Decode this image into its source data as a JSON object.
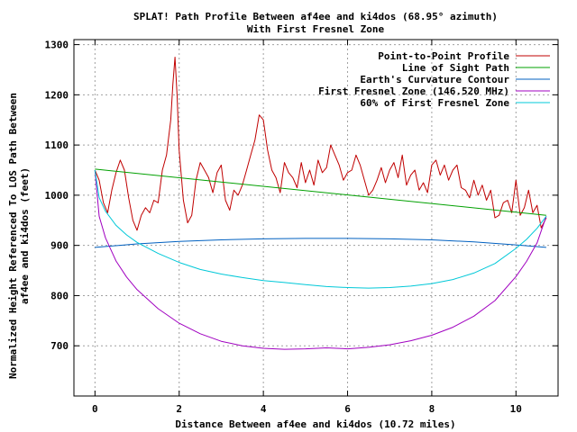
{
  "chart_data": {
    "type": "line",
    "title": "SPLAT! Path Profile Between af4ee and ki4dos (68.95° azimuth)",
    "subtitle": "With First Fresnel Zone",
    "xlabel": "Distance Between af4ee and ki4dos (10.72 miles)",
    "ylabel_line1": "Normalized Height Referenced To LOS Path Between",
    "ylabel_line2": "af4ee and ki4dos (feet)",
    "xlim": [
      -0.5,
      11
    ],
    "ylim": [
      600,
      1310
    ],
    "xticks": [
      0,
      2,
      4,
      6,
      8,
      10
    ],
    "yticks": [
      700,
      800,
      900,
      1000,
      1100,
      1200,
      1300
    ],
    "grid": true,
    "legend_position": "top-right",
    "series": [
      {
        "name": "Point-to-Point Profile",
        "color": "#c00000",
        "x": [
          0.0,
          0.1,
          0.2,
          0.3,
          0.4,
          0.5,
          0.6,
          0.7,
          0.8,
          0.9,
          1.0,
          1.1,
          1.2,
          1.3,
          1.4,
          1.5,
          1.6,
          1.7,
          1.8,
          1.85,
          1.9,
          1.95,
          2.0,
          2.1,
          2.2,
          2.3,
          2.4,
          2.5,
          2.6,
          2.7,
          2.8,
          2.9,
          3.0,
          3.1,
          3.2,
          3.3,
          3.4,
          3.5,
          3.6,
          3.7,
          3.8,
          3.9,
          4.0,
          4.1,
          4.2,
          4.3,
          4.4,
          4.5,
          4.6,
          4.7,
          4.8,
          4.9,
          5.0,
          5.1,
          5.2,
          5.3,
          5.4,
          5.5,
          5.6,
          5.7,
          5.8,
          5.9,
          6.0,
          6.1,
          6.2,
          6.3,
          6.4,
          6.5,
          6.6,
          6.7,
          6.8,
          6.9,
          7.0,
          7.1,
          7.2,
          7.3,
          7.4,
          7.5,
          7.6,
          7.7,
          7.8,
          7.9,
          8.0,
          8.1,
          8.2,
          8.3,
          8.4,
          8.5,
          8.6,
          8.7,
          8.8,
          8.9,
          9.0,
          9.1,
          9.2,
          9.3,
          9.4,
          9.5,
          9.6,
          9.7,
          9.8,
          9.9,
          10.0,
          10.1,
          10.2,
          10.3,
          10.4,
          10.5,
          10.6,
          10.72
        ],
        "y": [
          1050,
          1030,
          985,
          965,
          1010,
          1045,
          1070,
          1050,
          995,
          950,
          930,
          960,
          975,
          965,
          990,
          985,
          1050,
          1080,
          1150,
          1220,
          1275,
          1200,
          1090,
          990,
          945,
          960,
          1030,
          1065,
          1050,
          1035,
          1005,
          1045,
          1060,
          990,
          970,
          1010,
          1000,
          1020,
          1050,
          1080,
          1110,
          1160,
          1150,
          1090,
          1050,
          1035,
          1005,
          1065,
          1045,
          1035,
          1015,
          1065,
          1025,
          1050,
          1020,
          1070,
          1045,
          1055,
          1100,
          1080,
          1060,
          1030,
          1045,
          1050,
          1080,
          1060,
          1030,
          1000,
          1010,
          1030,
          1055,
          1025,
          1050,
          1065,
          1035,
          1080,
          1020,
          1040,
          1050,
          1010,
          1025,
          1005,
          1060,
          1070,
          1040,
          1060,
          1030,
          1050,
          1060,
          1015,
          1010,
          995,
          1030,
          1000,
          1020,
          990,
          1010,
          955,
          960,
          985,
          990,
          965,
          1030,
          960,
          975,
          1010,
          965,
          980,
          935,
          955
        ]
      },
      {
        "name": "Line of Sight Path",
        "color": "#00a000",
        "x": [
          0.0,
          10.72
        ],
        "y": [
          1052,
          960
        ]
      },
      {
        "name": "Earth's Curvature Contour",
        "color": "#0060c0",
        "x": [
          0.0,
          1.0,
          2.0,
          3.0,
          4.0,
          5.0,
          6.0,
          7.0,
          8.0,
          9.0,
          10.0,
          10.72
        ],
        "y": [
          896,
          903,
          908,
          911,
          913,
          914,
          914,
          913,
          911,
          907,
          901,
          896
        ]
      },
      {
        "name": "First Fresnel Zone (146.520 MHz)",
        "color": "#a000c0",
        "x": [
          0.0,
          0.1,
          0.25,
          0.5,
          0.75,
          1.0,
          1.5,
          2.0,
          2.5,
          3.0,
          3.5,
          4.0,
          4.5,
          5.0,
          5.5,
          6.0,
          6.5,
          7.0,
          7.5,
          8.0,
          8.5,
          9.0,
          9.5,
          10.0,
          10.25,
          10.5,
          10.72
        ],
        "y": [
          1050,
          958,
          915,
          869,
          837,
          812,
          774,
          745,
          724,
          709,
          700,
          695,
          693,
          694,
          696,
          694,
          697,
          702,
          710,
          721,
          737,
          759,
          790,
          838,
          868,
          905,
          958
        ]
      },
      {
        "name": "60% of First Fresnel Zone",
        "color": "#00c8d8",
        "x": [
          0.0,
          0.1,
          0.25,
          0.5,
          0.75,
          1.0,
          1.5,
          2.0,
          2.5,
          3.0,
          3.5,
          4.0,
          4.5,
          5.0,
          5.5,
          6.0,
          6.5,
          7.0,
          7.5,
          8.0,
          8.5,
          9.0,
          9.5,
          10.0,
          10.25,
          10.5,
          10.72
        ],
        "y": [
          1050,
          995,
          968,
          940,
          921,
          906,
          884,
          866,
          852,
          843,
          836,
          830,
          826,
          822,
          818,
          816,
          815,
          816,
          819,
          824,
          832,
          845,
          864,
          894,
          912,
          934,
          958
        ]
      }
    ]
  }
}
